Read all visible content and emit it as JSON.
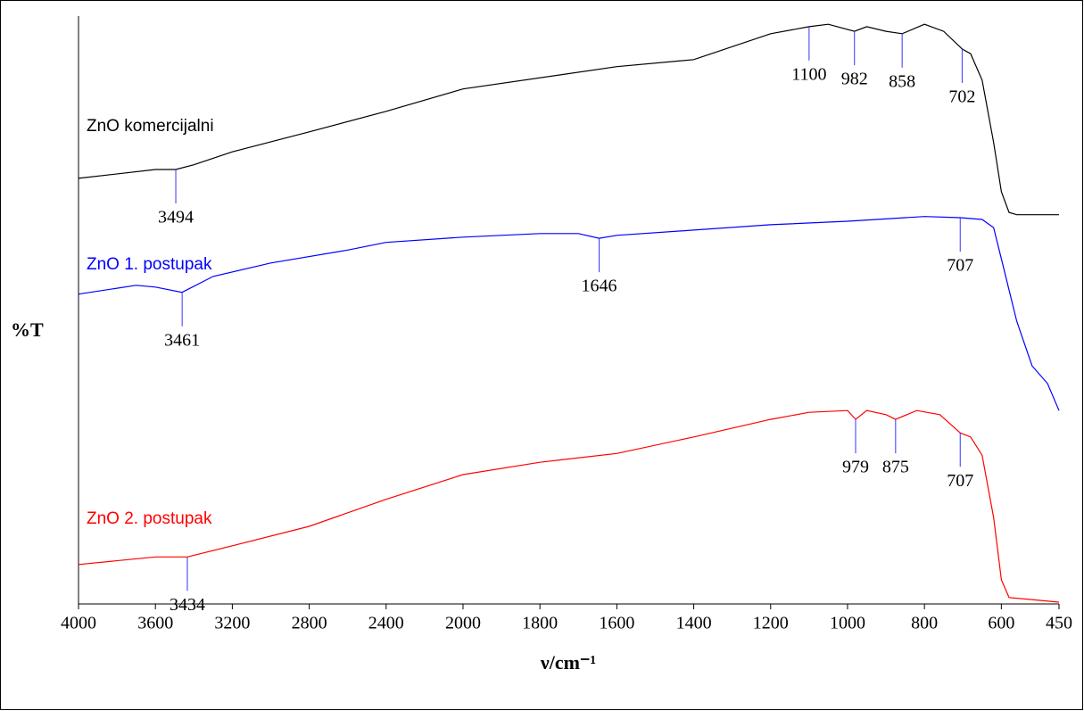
{
  "chart_data": {
    "type": "line",
    "xlabel": "ν/cm⁻¹",
    "ylabel": "%T",
    "xlim": [
      4000,
      450
    ],
    "xticks": [
      4000,
      3600,
      3200,
      2800,
      2400,
      2000,
      1800,
      1600,
      1400,
      1200,
      1000,
      800,
      600,
      450
    ],
    "x_expand_below": 2000,
    "x_expand_factor": 2,
    "ylim": [
      0,
      100
    ],
    "series": [
      {
        "name": "ZnO komercijalni",
        "color": "#000000",
        "x": [
          4000,
          3600,
          3494,
          3400,
          3200,
          2800,
          2400,
          2000,
          1600,
          1400,
          1200,
          1100,
          1050,
          982,
          950,
          900,
          858,
          800,
          750,
          702,
          680,
          650,
          620,
          600,
          580,
          560,
          450
        ],
        "values": [
          72.4,
          73.9,
          73.9,
          74.7,
          76.9,
          80.3,
          83.8,
          87.6,
          91.4,
          92.6,
          97.0,
          98.2,
          98.6,
          97.4,
          98.2,
          97.4,
          97.0,
          98.6,
          97.4,
          94.4,
          93.6,
          89.1,
          78.5,
          70.1,
          66.6,
          66.2,
          66.2
        ],
        "peaks": [
          3494,
          1100,
          982,
          858,
          702
        ]
      },
      {
        "name": "ZnO 1. postupak",
        "color": "#0000ff",
        "x": [
          4000,
          3700,
          3600,
          3461,
          3300,
          3000,
          2600,
          2400,
          2000,
          1800,
          1700,
          1646,
          1600,
          1400,
          1200,
          1000,
          800,
          707,
          650,
          620,
          600,
          560,
          520,
          480,
          450
        ],
        "values": [
          52.7,
          54.2,
          53.9,
          53.0,
          55.7,
          58.0,
          60.2,
          61.5,
          62.4,
          63.0,
          63.0,
          62.2,
          62.7,
          63.6,
          64.5,
          65.1,
          65.9,
          65.7,
          65.4,
          64.0,
          58.7,
          48.1,
          40.5,
          37.5,
          32.9
        ],
        "peaks": [
          3461,
          1646,
          707
        ]
      },
      {
        "name": "ZnO 2. postupak",
        "color": "#ff0000",
        "x": [
          4000,
          3600,
          3434,
          3200,
          2800,
          2400,
          2000,
          1800,
          1600,
          1400,
          1200,
          1100,
          1000,
          979,
          950,
          900,
          875,
          820,
          760,
          707,
          680,
          650,
          620,
          600,
          580,
          450
        ],
        "values": [
          6.7,
          8.0,
          8.0,
          9.9,
          13.2,
          17.8,
          22.0,
          24.1,
          25.6,
          28.4,
          31.4,
          32.6,
          32.9,
          31.4,
          32.9,
          32.2,
          31.4,
          32.9,
          32.2,
          29.1,
          28.4,
          25.3,
          14.7,
          4.1,
          1.1,
          0.3
        ],
        "peaks": [
          3434,
          979,
          875,
          707
        ]
      }
    ]
  }
}
